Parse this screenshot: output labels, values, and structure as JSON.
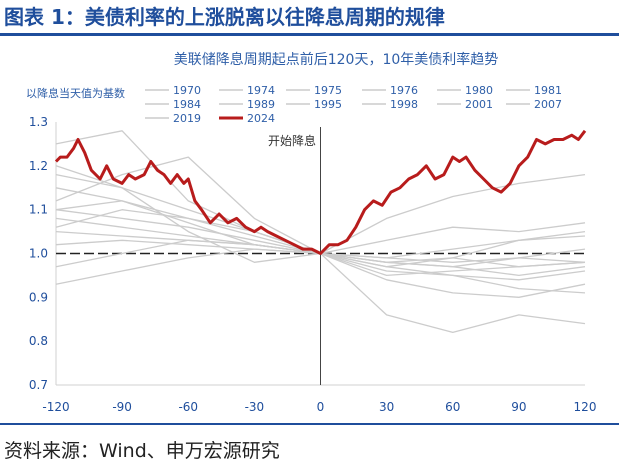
{
  "figure_title": "图表 1：美债利率的上涨脱离以往降息周期的规律",
  "source_note": "资料来源：Wind、申万宏源研究",
  "chart_data": {
    "type": "line",
    "subtitle": "美联储降息周期起点前后120天，10年美债利率趋势",
    "ylabel": "以降息当天值为基数",
    "annotation": "开始降息",
    "xlim": [
      -120,
      120
    ],
    "ylim": [
      0.7,
      1.3
    ],
    "xticks": [
      -120,
      -90,
      -60,
      -30,
      0,
      30,
      60,
      90,
      120
    ],
    "yticks": [
      0.7,
      0.8,
      0.9,
      1.0,
      1.1,
      1.2,
      1.3
    ],
    "xtick_labels": [
      "-120",
      "-90",
      "-60",
      "-30",
      "0",
      "30",
      "60",
      "90",
      "120"
    ],
    "ytick_labels": [
      "0.7",
      "0.8",
      "0.9",
      "1.0",
      "1.1",
      "1.2",
      "1.3"
    ],
    "reference_line_y": 1.0,
    "grid": false,
    "legend_position": "top",
    "colors": {
      "highlight": "#b81c1c",
      "other": "#cccccc",
      "axis": "#1f4e9c"
    },
    "series": [
      {
        "name": "1970",
        "x": [
          -120,
          -90,
          -60,
          -30,
          0,
          30,
          60,
          90,
          120
        ],
        "values": [
          1.06,
          1.1,
          1.08,
          1.05,
          1.0,
          0.96,
          0.95,
          0.94,
          0.96
        ]
      },
      {
        "name": "1974",
        "x": [
          -120,
          -90,
          -60,
          -30,
          0,
          30,
          60,
          90,
          120
        ],
        "values": [
          0.97,
          1.0,
          1.03,
          1.02,
          1.0,
          1.03,
          1.06,
          1.05,
          1.07
        ]
      },
      {
        "name": "1975",
        "x": [
          -120,
          -90,
          -60,
          -30,
          0,
          30,
          60,
          90,
          120
        ],
        "values": [
          1.15,
          1.12,
          1.08,
          1.04,
          1.0,
          0.99,
          1.01,
          1.03,
          1.04
        ]
      },
      {
        "name": "1976",
        "x": [
          -120,
          -90,
          -60,
          -30,
          0,
          30,
          60,
          90,
          120
        ],
        "values": [
          1.02,
          1.03,
          1.02,
          1.01,
          1.0,
          0.98,
          0.99,
          0.97,
          0.98
        ]
      },
      {
        "name": "1980",
        "x": [
          -120,
          -90,
          -60,
          -30,
          0,
          30,
          60,
          90,
          120
        ],
        "values": [
          1.2,
          1.15,
          1.05,
          0.98,
          1.0,
          1.08,
          1.13,
          1.16,
          1.18
        ]
      },
      {
        "name": "1981",
        "x": [
          -120,
          -90,
          -60,
          -30,
          0,
          30,
          60,
          90,
          120
        ],
        "values": [
          0.93,
          0.96,
          0.99,
          1.01,
          1.0,
          0.98,
          0.97,
          0.95,
          0.97
        ]
      },
      {
        "name": "1984",
        "x": [
          -120,
          -90,
          -60,
          -30,
          0,
          30,
          60,
          90,
          120
        ],
        "values": [
          1.12,
          1.18,
          1.22,
          1.08,
          1.0,
          0.97,
          0.95,
          0.92,
          0.91
        ]
      },
      {
        "name": "1989",
        "x": [
          -120,
          -90,
          -60,
          -30,
          0,
          30,
          60,
          90,
          120
        ],
        "values": [
          1.1,
          1.12,
          1.07,
          1.02,
          1.0,
          0.99,
          0.98,
          0.99,
          0.98
        ]
      },
      {
        "name": "1995",
        "x": [
          -120,
          -90,
          -60,
          -30,
          0,
          30,
          60,
          90,
          120
        ],
        "values": [
          1.25,
          1.28,
          1.12,
          1.05,
          1.0,
          0.94,
          0.91,
          0.9,
          0.93
        ]
      },
      {
        "name": "1998",
        "x": [
          -120,
          -90,
          -60,
          -30,
          0,
          30,
          60,
          90,
          120
        ],
        "values": [
          1.08,
          1.06,
          1.04,
          1.02,
          1.0,
          0.98,
          0.97,
          0.99,
          1.01
        ]
      },
      {
        "name": "2001",
        "x": [
          -120,
          -90,
          -60,
          -30,
          0,
          30,
          60,
          90,
          120
        ],
        "values": [
          1.05,
          1.04,
          1.03,
          1.02,
          1.0,
          0.97,
          0.99,
          1.03,
          1.05
        ]
      },
      {
        "name": "2007",
        "x": [
          -120,
          -90,
          -60,
          -30,
          0,
          30,
          60,
          90,
          120
        ],
        "values": [
          1.1,
          1.08,
          1.06,
          1.03,
          1.0,
          0.95,
          0.96,
          0.97,
          0.98
        ]
      },
      {
        "name": "2019",
        "x": [
          -120,
          -90,
          -60,
          -30,
          0,
          30,
          60,
          90,
          120
        ],
        "values": [
          1.18,
          1.15,
          1.1,
          1.05,
          1.0,
          0.86,
          0.82,
          0.86,
          0.84
        ]
      },
      {
        "name": "2024",
        "x": [
          -120,
          -118,
          -115,
          -112,
          -110,
          -107,
          -104,
          -100,
          -97,
          -94,
          -90,
          -87,
          -84,
          -80,
          -77,
          -74,
          -71,
          -68,
          -65,
          -62,
          -60,
          -57,
          -54,
          -50,
          -46,
          -42,
          -38,
          -34,
          -30,
          -27,
          -24,
          -20,
          -16,
          -12,
          -8,
          -4,
          0,
          4,
          8,
          12,
          16,
          20,
          24,
          28,
          32,
          36,
          40,
          44,
          48,
          52,
          56,
          60,
          63,
          66,
          70,
          74,
          78,
          82,
          86,
          90,
          94,
          98,
          102,
          106,
          110,
          114,
          117,
          120
        ],
        "values": [
          1.21,
          1.22,
          1.22,
          1.24,
          1.26,
          1.23,
          1.19,
          1.17,
          1.2,
          1.17,
          1.16,
          1.18,
          1.17,
          1.18,
          1.21,
          1.19,
          1.18,
          1.16,
          1.18,
          1.16,
          1.17,
          1.12,
          1.1,
          1.07,
          1.09,
          1.07,
          1.08,
          1.06,
          1.05,
          1.06,
          1.05,
          1.04,
          1.03,
          1.02,
          1.01,
          1.01,
          1.0,
          1.02,
          1.02,
          1.03,
          1.06,
          1.1,
          1.12,
          1.11,
          1.14,
          1.15,
          1.17,
          1.18,
          1.2,
          1.17,
          1.18,
          1.22,
          1.21,
          1.22,
          1.19,
          1.17,
          1.15,
          1.14,
          1.16,
          1.2,
          1.22,
          1.26,
          1.25,
          1.26,
          1.26,
          1.27,
          1.26,
          1.28
        ]
      }
    ]
  }
}
